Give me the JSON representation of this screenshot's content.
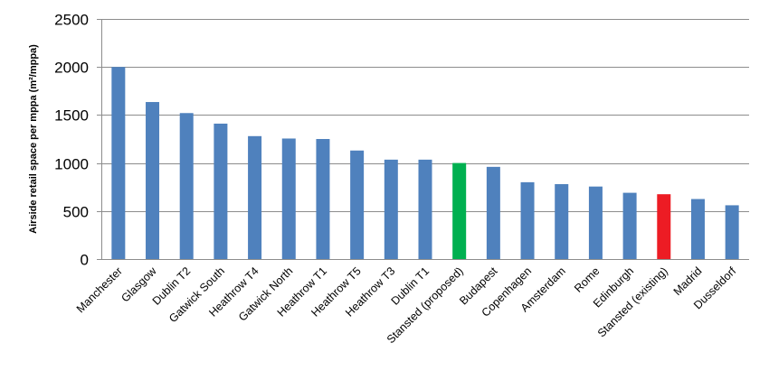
{
  "chart_data": {
    "type": "bar",
    "title": "",
    "xlabel": "",
    "ylabel": "Airside retail space per mppa (m²/mppa)",
    "ylim": [
      0,
      2500
    ],
    "yticks": [
      0,
      500,
      1000,
      1500,
      2000,
      2500
    ],
    "grid": true,
    "legend": "none",
    "categories": [
      "Manchester",
      "Glasgow",
      "Dublin T2",
      "Gatwick South",
      "Heathrow T4",
      "Gatwick North",
      "Heathrow T1",
      "Heathrow T5",
      "Heathrow T3",
      "Dublin T1",
      "Stansted (proposed)",
      "Budapest",
      "Copenhagen",
      "Amsterdam",
      "Rome",
      "Edinburgh",
      "Stansted (existing)",
      "Madrid",
      "Dusseldorf"
    ],
    "values": [
      2000,
      1635,
      1520,
      1410,
      1280,
      1255,
      1250,
      1130,
      1035,
      1035,
      1000,
      960,
      800,
      780,
      755,
      690,
      675,
      625,
      560
    ],
    "colors": {
      "default": "#4f81bd",
      "highlight_proposed": "#00b050",
      "highlight_existing": "#ed1c24",
      "grid": "#8c8c8c",
      "axis": "#8c8c8c"
    },
    "highlights": {
      "Stansted (proposed)": "highlight_proposed",
      "Stansted (existing)": "highlight_existing"
    }
  }
}
